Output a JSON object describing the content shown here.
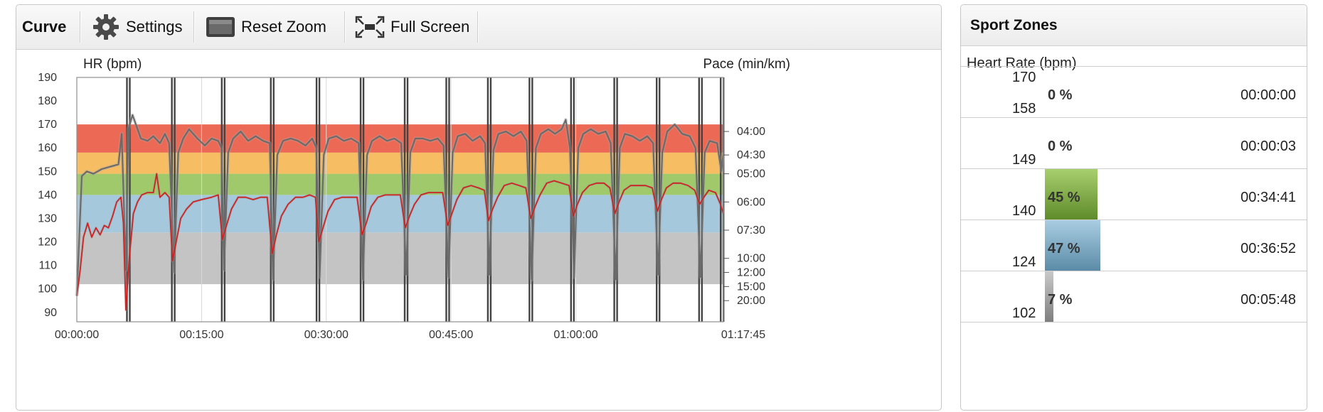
{
  "toolbar": {
    "title": "Curve",
    "settings_label": "Settings",
    "reset_zoom_label": "Reset Zoom",
    "full_screen_label": "Full Screen",
    "icons": [
      "gear-icon",
      "reset-zoom-icon",
      "full-screen-icon"
    ]
  },
  "chart_data": {
    "type": "line",
    "ylabel": "HR (bpm)",
    "y2label": "Pace (min/km)",
    "ylim": [
      86,
      190
    ],
    "yticks": [
      190,
      180,
      170,
      160,
      150,
      140,
      130,
      120,
      110,
      100,
      90
    ],
    "y2ticks": [
      {
        "label": "04:00",
        "hr": 167
      },
      {
        "label": "04:30",
        "hr": 157
      },
      {
        "label": "05:00",
        "hr": 149
      },
      {
        "label": "06:00",
        "hr": 137
      },
      {
        "label": "07:30",
        "hr": 125
      },
      {
        "label": "10:00",
        "hr": 113
      },
      {
        "label": "12:00",
        "hr": 107
      },
      {
        "label": "15:00",
        "hr": 101
      },
      {
        "label": "20:00",
        "hr": 95
      }
    ],
    "xlim_min": [
      0,
      77.75
    ],
    "xticks": [
      {
        "label": "00:00:00",
        "min": 0
      },
      {
        "label": "00:15:00",
        "min": 15
      },
      {
        "label": "00:30:00",
        "min": 30
      },
      {
        "label": "00:45:00",
        "min": 45
      },
      {
        "label": "01:00:00",
        "min": 60
      },
      {
        "label": "01:17:45",
        "min": 77.75
      }
    ],
    "zones": [
      {
        "from": 102,
        "to": 124,
        "color": "#c4c4c4"
      },
      {
        "from": 124,
        "to": 140,
        "color": "#a6c8dc"
      },
      {
        "from": 140,
        "to": 149,
        "color": "#9fc96b"
      },
      {
        "from": 149,
        "to": 158,
        "color": "#f6bd63"
      },
      {
        "from": 158,
        "to": 170,
        "color": "#ec6a55"
      }
    ],
    "hr_series_color": "#6b6b6b",
    "pace_series_color": "#cc2222",
    "hr_points": [
      [
        0,
        97
      ],
      [
        0.6,
        148
      ],
      [
        1.2,
        150
      ],
      [
        2,
        149
      ],
      [
        3,
        151
      ],
      [
        4,
        152
      ],
      [
        5,
        153
      ],
      [
        5.4,
        166
      ],
      [
        5.9,
        108
      ],
      [
        6.2,
        168
      ],
      [
        6.7,
        174
      ],
      [
        7.2,
        169
      ],
      [
        7.7,
        164
      ],
      [
        8.5,
        163
      ],
      [
        9.2,
        165
      ],
      [
        10,
        162
      ],
      [
        10.6,
        166
      ],
      [
        11.1,
        162
      ],
      [
        11.7,
        107
      ],
      [
        12.2,
        158
      ],
      [
        12.8,
        164
      ],
      [
        13.5,
        168
      ],
      [
        14.5,
        164
      ],
      [
        15.4,
        161
      ],
      [
        16.2,
        164
      ],
      [
        17,
        163
      ],
      [
        17.4,
        160
      ],
      [
        17.7,
        108
      ],
      [
        18.2,
        158
      ],
      [
        18.8,
        164
      ],
      [
        19.7,
        167
      ],
      [
        20.6,
        163
      ],
      [
        21.5,
        165
      ],
      [
        22.4,
        163
      ],
      [
        23.2,
        162
      ],
      [
        23.6,
        104
      ],
      [
        24.1,
        157
      ],
      [
        24.8,
        163
      ],
      [
        25.7,
        164
      ],
      [
        26.6,
        163
      ],
      [
        27.5,
        161
      ],
      [
        28.3,
        164
      ],
      [
        28.8,
        160
      ],
      [
        29.2,
        105
      ],
      [
        29.7,
        157
      ],
      [
        30.3,
        164
      ],
      [
        31.2,
        165
      ],
      [
        32.1,
        163
      ],
      [
        33,
        164
      ],
      [
        33.9,
        162
      ],
      [
        34.4,
        104
      ],
      [
        34.9,
        157
      ],
      [
        35.5,
        163
      ],
      [
        36.4,
        165
      ],
      [
        37.3,
        163
      ],
      [
        38.2,
        164
      ],
      [
        39,
        162
      ],
      [
        39.6,
        106
      ],
      [
        40.1,
        158
      ],
      [
        40.7,
        164
      ],
      [
        41.6,
        164
      ],
      [
        42.5,
        163
      ],
      [
        43.4,
        164
      ],
      [
        44.1,
        161
      ],
      [
        44.7,
        105
      ],
      [
        45.2,
        158
      ],
      [
        45.8,
        165
      ],
      [
        46.7,
        166
      ],
      [
        47.6,
        163
      ],
      [
        48.5,
        165
      ],
      [
        49.1,
        162
      ],
      [
        49.6,
        106
      ],
      [
        50.1,
        159
      ],
      [
        50.7,
        166
      ],
      [
        51.6,
        167
      ],
      [
        52.5,
        165
      ],
      [
        53.4,
        167
      ],
      [
        54.1,
        163
      ],
      [
        54.7,
        104
      ],
      [
        55.2,
        160
      ],
      [
        55.8,
        166
      ],
      [
        56.7,
        168
      ],
      [
        57.5,
        166
      ],
      [
        58.3,
        168
      ],
      [
        58.8,
        172
      ],
      [
        59.3,
        160
      ],
      [
        59.8,
        105
      ],
      [
        60.3,
        160
      ],
      [
        60.9,
        166
      ],
      [
        61.8,
        168
      ],
      [
        62.7,
        166
      ],
      [
        63.6,
        167
      ],
      [
        64.2,
        162
      ],
      [
        64.8,
        104
      ],
      [
        65.3,
        160
      ],
      [
        65.9,
        166
      ],
      [
        66.8,
        165
      ],
      [
        67.7,
        163
      ],
      [
        68.6,
        165
      ],
      [
        69.3,
        162
      ],
      [
        69.9,
        106
      ],
      [
        70.4,
        158
      ],
      [
        71,
        167
      ],
      [
        71.9,
        170
      ],
      [
        72.8,
        166
      ],
      [
        73.7,
        165
      ],
      [
        74.4,
        160
      ],
      [
        75,
        105
      ],
      [
        75.5,
        158
      ],
      [
        76.1,
        163
      ],
      [
        77,
        162
      ],
      [
        77.5,
        150
      ],
      [
        77.75,
        158
      ]
    ],
    "pace_hr_points": [
      [
        0,
        97
      ],
      [
        0.4,
        108
      ],
      [
        0.8,
        122
      ],
      [
        1.3,
        128
      ],
      [
        1.8,
        122
      ],
      [
        2.3,
        126
      ],
      [
        2.8,
        123
      ],
      [
        3.3,
        127
      ],
      [
        3.8,
        126
      ],
      [
        4.3,
        131
      ],
      [
        4.8,
        137
      ],
      [
        5.3,
        139
      ],
      [
        5.6,
        128
      ],
      [
        5.9,
        91
      ],
      [
        6.3,
        113
      ],
      [
        6.8,
        132
      ],
      [
        7.3,
        137
      ],
      [
        7.8,
        140
      ],
      [
        8.5,
        141
      ],
      [
        9.2,
        141
      ],
      [
        9.6,
        149
      ],
      [
        10,
        139
      ],
      [
        10.6,
        141
      ],
      [
        11.1,
        139
      ],
      [
        11.5,
        112
      ],
      [
        12,
        121
      ],
      [
        12.5,
        130
      ],
      [
        13.2,
        134
      ],
      [
        14,
        137
      ],
      [
        15,
        138
      ],
      [
        16.2,
        139
      ],
      [
        17,
        140
      ],
      [
        17.5,
        121
      ],
      [
        18,
        127
      ],
      [
        18.6,
        134
      ],
      [
        19.4,
        139
      ],
      [
        20.3,
        139
      ],
      [
        21.2,
        138
      ],
      [
        22.1,
        139
      ],
      [
        22.9,
        139
      ],
      [
        23.5,
        115
      ],
      [
        24,
        123
      ],
      [
        24.6,
        131
      ],
      [
        25.4,
        136
      ],
      [
        26.3,
        139
      ],
      [
        27.2,
        139
      ],
      [
        28,
        140
      ],
      [
        28.7,
        139
      ],
      [
        29.1,
        120
      ],
      [
        29.6,
        126
      ],
      [
        30.2,
        133
      ],
      [
        31,
        138
      ],
      [
        31.9,
        139
      ],
      [
        32.8,
        139
      ],
      [
        33.7,
        139
      ],
      [
        34.3,
        123
      ],
      [
        34.8,
        128
      ],
      [
        35.4,
        135
      ],
      [
        36.2,
        139
      ],
      [
        37.1,
        140
      ],
      [
        38,
        140
      ],
      [
        38.9,
        140
      ],
      [
        39.5,
        126
      ],
      [
        40,
        131
      ],
      [
        40.6,
        136
      ],
      [
        41.4,
        140
      ],
      [
        42.3,
        141
      ],
      [
        43.2,
        141
      ],
      [
        44,
        141
      ],
      [
        44.6,
        127
      ],
      [
        45.1,
        132
      ],
      [
        45.7,
        138
      ],
      [
        46.5,
        143
      ],
      [
        47.4,
        144
      ],
      [
        48.3,
        143
      ],
      [
        49,
        142
      ],
      [
        49.5,
        129
      ],
      [
        50,
        134
      ],
      [
        50.6,
        139
      ],
      [
        51.4,
        144
      ],
      [
        52.3,
        145
      ],
      [
        53.2,
        144
      ],
      [
        54,
        143
      ],
      [
        54.6,
        130
      ],
      [
        55.1,
        135
      ],
      [
        55.7,
        140
      ],
      [
        56.5,
        145
      ],
      [
        57.4,
        146
      ],
      [
        58.3,
        145
      ],
      [
        59.2,
        144
      ],
      [
        59.7,
        131
      ],
      [
        60.2,
        136
      ],
      [
        60.8,
        141
      ],
      [
        61.6,
        144
      ],
      [
        62.5,
        145
      ],
      [
        63.4,
        145
      ],
      [
        64.1,
        143
      ],
      [
        64.7,
        132
      ],
      [
        65.2,
        137
      ],
      [
        65.8,
        142
      ],
      [
        66.6,
        144
      ],
      [
        67.5,
        144
      ],
      [
        68.4,
        144
      ],
      [
        69.2,
        143
      ],
      [
        69.8,
        133
      ],
      [
        70.3,
        138
      ],
      [
        70.9,
        143
      ],
      [
        71.7,
        145
      ],
      [
        72.6,
        145
      ],
      [
        73.5,
        144
      ],
      [
        74.3,
        142
      ],
      [
        74.9,
        136
      ],
      [
        75.4,
        139
      ],
      [
        76,
        142
      ],
      [
        76.8,
        141
      ],
      [
        77.4,
        136
      ],
      [
        77.75,
        132
      ]
    ],
    "lap_markers_min": [
      6.2,
      11.6,
      17.6,
      23.5,
      29.0,
      34.3,
      39.6,
      44.6,
      49.6,
      54.6,
      59.6,
      64.8,
      69.9,
      75.0,
      77.6
    ]
  },
  "zones_panel": {
    "title": "Sport Zones",
    "subtitle": "Heart Rate (bpm)",
    "rows": [
      {
        "hi": "170",
        "lo": "158",
        "pct": "0 %",
        "frac": 0.0,
        "time": "00:00:00",
        "bar_top": "",
        "bar_bottom": ""
      },
      {
        "hi": "",
        "lo": "149",
        "pct": "0 %",
        "frac": 0.0,
        "time": "00:00:03",
        "bar_top": "",
        "bar_bottom": ""
      },
      {
        "hi": "",
        "lo": "140",
        "pct": "45 %",
        "frac": 0.45,
        "time": "00:34:41",
        "bar_top": "#a8cf6e",
        "bar_bottom": "#5e8a2a"
      },
      {
        "hi": "",
        "lo": "124",
        "pct": "47 %",
        "frac": 0.47,
        "time": "00:36:52",
        "bar_top": "#a9cde2",
        "bar_bottom": "#5a8aa6"
      },
      {
        "hi": "",
        "lo": "102",
        "pct": "7 %",
        "frac": 0.07,
        "time": "00:05:48",
        "bar_top": "#c9c9c9",
        "bar_bottom": "#7d7d7d"
      }
    ]
  }
}
